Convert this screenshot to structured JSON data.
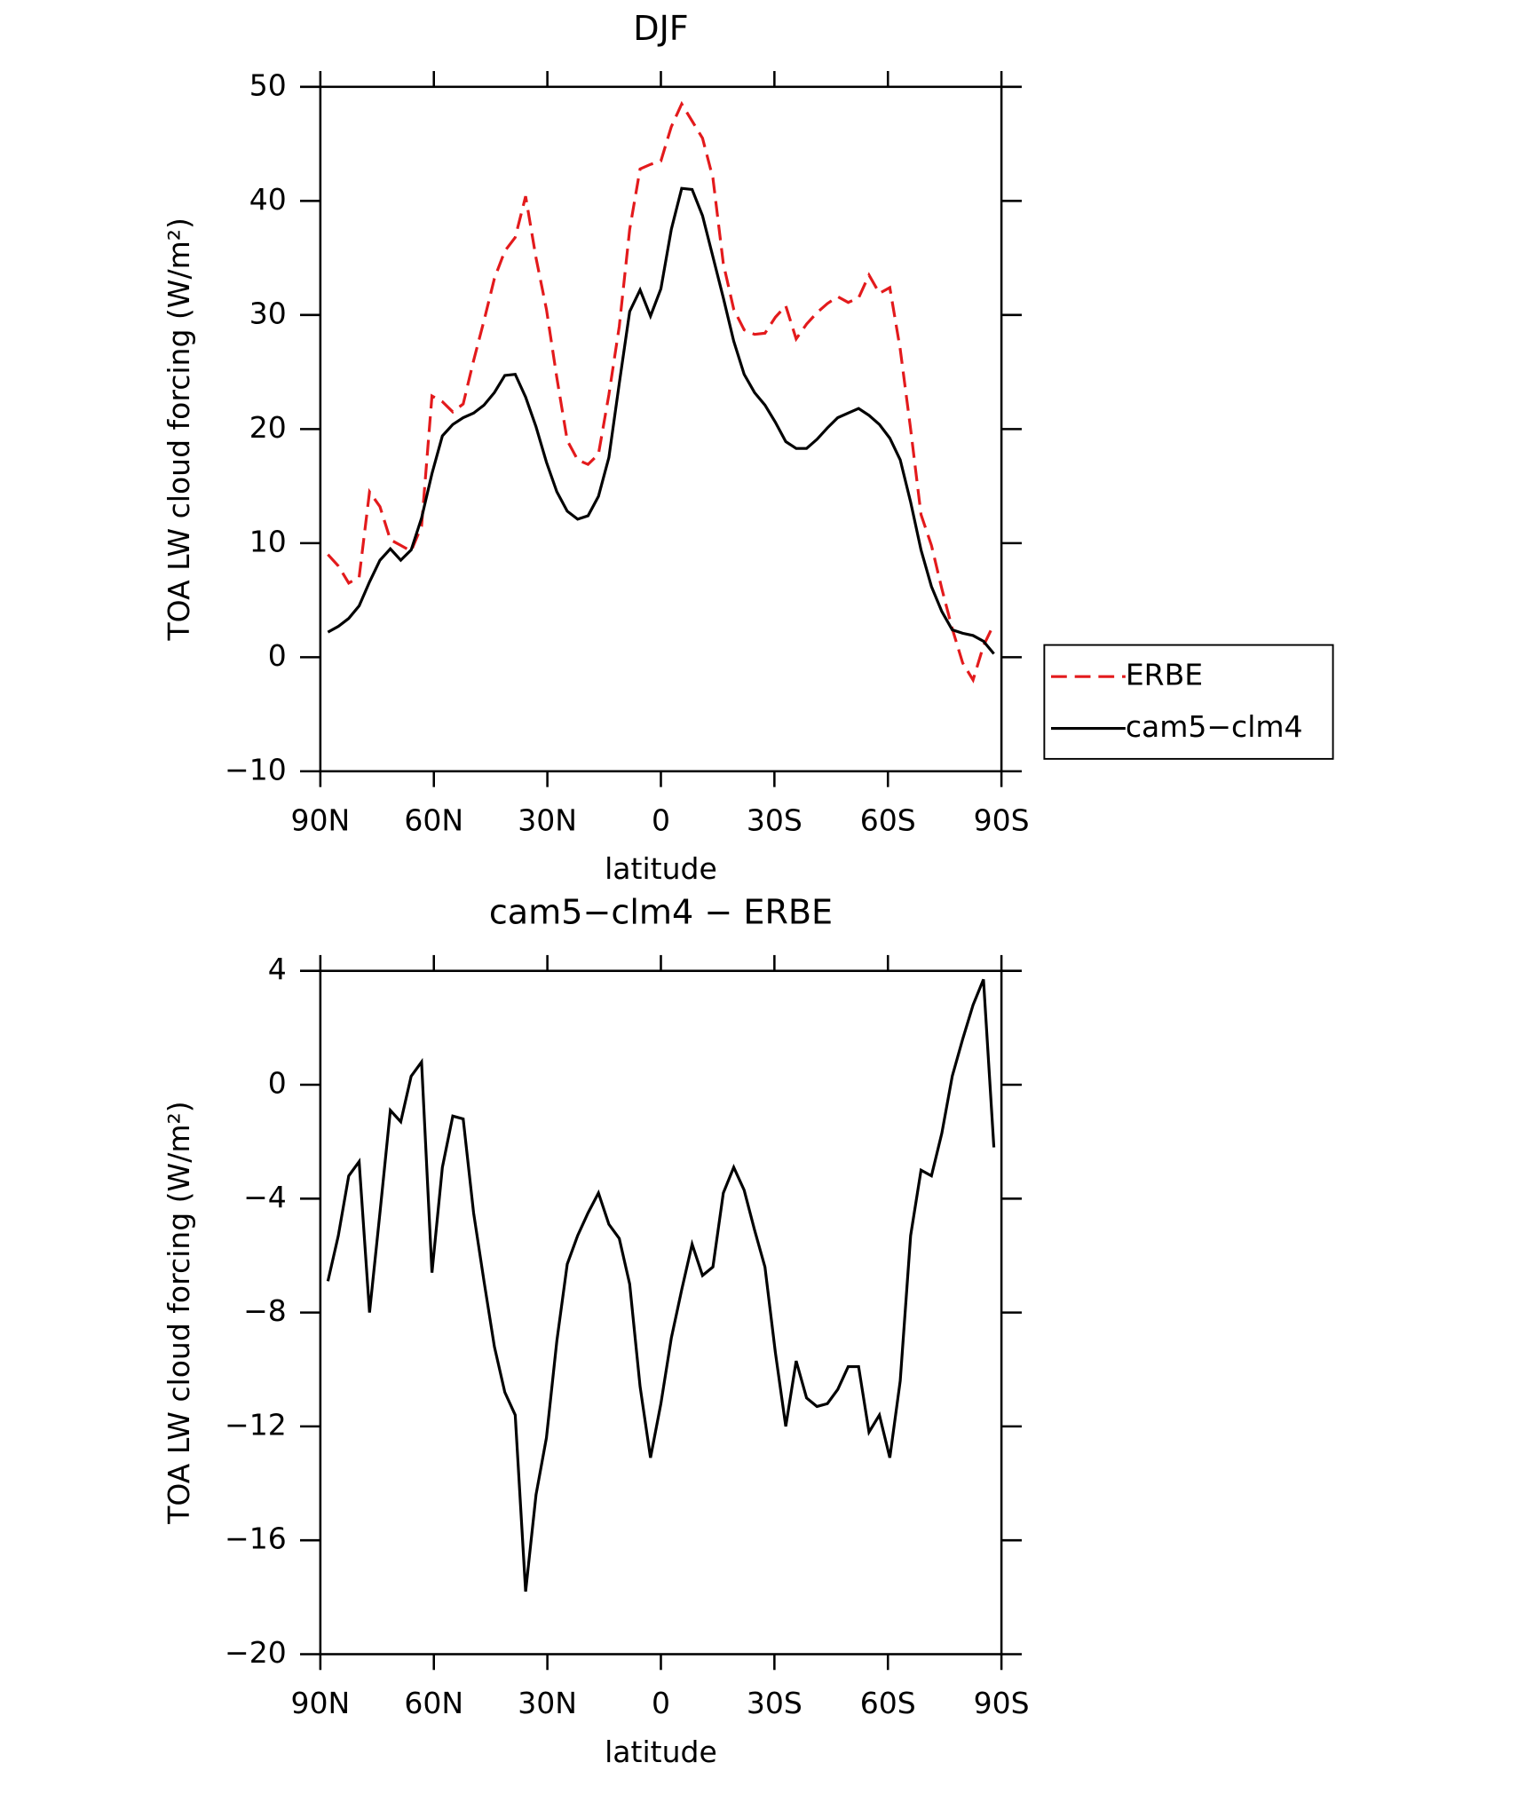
{
  "chart_data": [
    {
      "type": "line",
      "title": "DJF",
      "xlabel": "latitude",
      "ylabel": "TOA LW cloud forcing (W/m²)",
      "xlim": [
        90,
        -90
      ],
      "ylim": [
        -10,
        50
      ],
      "xticks": [
        {
          "value": 90,
          "label": "90N"
        },
        {
          "value": 60,
          "label": "60N"
        },
        {
          "value": 30,
          "label": "30N"
        },
        0,
        {
          "value": -30,
          "label": "30S"
        },
        {
          "value": -60,
          "label": "60S"
        },
        {
          "value": -90,
          "label": "90S"
        }
      ],
      "yticks": [
        {
          "value": -10,
          "label": "−10"
        },
        0,
        10,
        20,
        30,
        40,
        50
      ],
      "legend": "right",
      "x": [
        88,
        85.25,
        82.5,
        79.75,
        77,
        74.25,
        71.5,
        68.75,
        66,
        63.25,
        60.5,
        57.75,
        55,
        52.25,
        49.5,
        46.75,
        44,
        41.25,
        38.5,
        35.75,
        33,
        30.25,
        27.5,
        24.75,
        22,
        19.25,
        16.5,
        13.75,
        11,
        8.25,
        5.5,
        2.75,
        0,
        -2.75,
        -5.5,
        -8.25,
        -11,
        -13.75,
        -16.5,
        -19.25,
        -22,
        -24.75,
        -27.5,
        -30.25,
        -33,
        -35.75,
        -38.5,
        -41.25,
        -44,
        -46.75,
        -49.5,
        -52.25,
        -55,
        -57.75,
        -60.5,
        -63.25,
        -66,
        -68.75,
        -71.5,
        -74.25,
        -77,
        -79.75,
        -82.5,
        -85.25,
        -88
      ],
      "series": [
        {
          "name": "ERBE",
          "color": "#e31a1c",
          "dash": true,
          "values": [
            9.0,
            8.0,
            6.5,
            7.0,
            14.5,
            13.2,
            10.3,
            9.8,
            9.3,
            11.5,
            22.9,
            22.4,
            21.5,
            22.2,
            26.0,
            29.5,
            33.2,
            35.6,
            36.8,
            40.4,
            35.0,
            30.5,
            24.5,
            19.0,
            17.3,
            16.9,
            17.8,
            23.0,
            29.0,
            37.5,
            42.8,
            43.2,
            43.5,
            46.5,
            48.5,
            47.0,
            45.5,
            42.0,
            34.5,
            30.5,
            28.7,
            28.3,
            28.4,
            29.8,
            30.8,
            27.9,
            29.2,
            30.2,
            31.0,
            31.6,
            31.1,
            31.5,
            33.5,
            31.9,
            32.4,
            27.0,
            20.0,
            12.5,
            9.8,
            6.0,
            2.5,
            -0.5,
            -2.0,
            1.0,
            2.9
          ]
        },
        {
          "name": "cam5−clm4",
          "color": "#000000",
          "dash": false,
          "values": [
            2.2,
            2.7,
            3.4,
            4.5,
            6.6,
            8.5,
            9.5,
            8.5,
            9.4,
            12.2,
            16.1,
            19.4,
            20.4,
            21.0,
            21.4,
            22.1,
            23.2,
            24.7,
            24.8,
            22.8,
            20.2,
            17.1,
            14.5,
            12.8,
            12.1,
            12.4,
            14.1,
            17.5,
            24.0,
            30.3,
            32.2,
            29.9,
            32.3,
            37.5,
            41.1,
            41.0,
            38.7,
            35.1,
            31.5,
            27.7,
            24.8,
            23.2,
            22.1,
            20.6,
            18.9,
            18.3,
            18.3,
            19.1,
            20.1,
            21.0,
            21.4,
            21.8,
            21.2,
            20.4,
            19.2,
            17.3,
            13.6,
            9.4,
            6.2,
            4.0,
            2.4,
            2.1,
            1.9,
            1.4,
            0.3
          ]
        }
      ]
    },
    {
      "type": "line",
      "title": "cam5−clm4 − ERBE",
      "xlabel": "latitude",
      "ylabel": "TOA LW cloud forcing (W/m²)",
      "xlim": [
        90,
        -90
      ],
      "ylim": [
        -20,
        4
      ],
      "xticks": [
        {
          "value": 90,
          "label": "90N"
        },
        {
          "value": 60,
          "label": "60N"
        },
        {
          "value": 30,
          "label": "30N"
        },
        0,
        {
          "value": -30,
          "label": "30S"
        },
        {
          "value": -60,
          "label": "60S"
        },
        {
          "value": -90,
          "label": "90S"
        }
      ],
      "yticks": [
        {
          "value": -20,
          "label": "−20"
        },
        {
          "value": -16,
          "label": "−16"
        },
        {
          "value": -12,
          "label": "−12"
        },
        {
          "value": -8,
          "label": "−8"
        },
        {
          "value": -4,
          "label": "−4"
        },
        0,
        4
      ],
      "x": [
        88,
        85.25,
        82.5,
        79.75,
        77,
        74.25,
        71.5,
        68.75,
        66,
        63.25,
        60.5,
        57.75,
        55,
        52.25,
        49.5,
        46.75,
        44,
        41.25,
        38.5,
        35.75,
        33,
        30.25,
        27.5,
        24.75,
        22,
        19.25,
        16.5,
        13.75,
        11,
        8.25,
        5.5,
        2.75,
        0,
        -2.75,
        -5.5,
        -8.25,
        -11,
        -13.75,
        -16.5,
        -19.25,
        -22,
        -24.75,
        -27.5,
        -30.25,
        -33,
        -35.75,
        -38.5,
        -41.25,
        -44,
        -46.75,
        -49.5,
        -52.25,
        -55,
        -57.75,
        -60.5,
        -63.25,
        -66,
        -68.75,
        -71.5,
        -74.25,
        -77,
        -79.75,
        -82.5,
        -85.25,
        -88
      ],
      "series": [
        {
          "color": "#000000",
          "dash": false,
          "values": [
            -6.9,
            -5.3,
            -3.2,
            -2.7,
            -8.0,
            -4.5,
            -0.9,
            -1.3,
            0.3,
            0.8,
            -6.6,
            -2.9,
            -1.1,
            -1.2,
            -4.5,
            -6.9,
            -9.2,
            -10.8,
            -11.6,
            -17.8,
            -14.4,
            -12.4,
            -9.0,
            -6.3,
            -5.3,
            -4.5,
            -3.8,
            -4.9,
            -5.4,
            -7.0,
            -10.6,
            -13.1,
            -11.2,
            -8.9,
            -7.2,
            -5.6,
            -6.7,
            -6.4,
            -3.8,
            -2.9,
            -3.7,
            -5.1,
            -6.4,
            -9.4,
            -12.0,
            -9.7,
            -11.0,
            -11.3,
            -11.2,
            -10.7,
            -9.9,
            -9.9,
            -12.2,
            -11.6,
            -13.1,
            -10.4,
            -5.3,
            -3.0,
            -3.2,
            -1.7,
            0.3,
            1.6,
            2.8,
            3.7,
            -2.2
          ]
        }
      ]
    }
  ]
}
